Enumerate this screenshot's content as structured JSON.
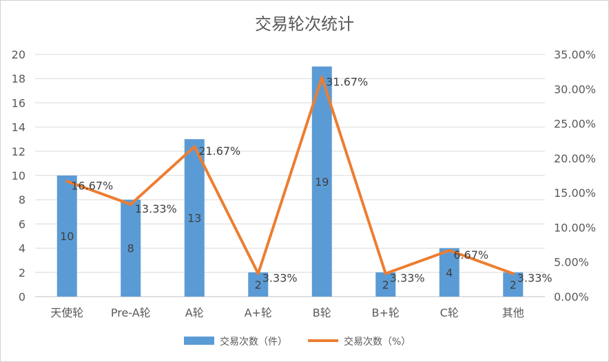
{
  "chart_data": {
    "type": "bar",
    "title": "交易轮次统计",
    "categories": [
      "天使轮",
      "Pre-A轮",
      "A轮",
      "A+轮",
      "B轮",
      "B+轮",
      "C轮",
      "其他"
    ],
    "series": [
      {
        "name": "交易次数（件）",
        "type": "bar",
        "axis": "left",
        "values": [
          10,
          8,
          13,
          2,
          19,
          2,
          4,
          2
        ],
        "labels": [
          "10",
          "8",
          "13",
          "2",
          "19",
          "2",
          "4",
          "2"
        ],
        "color": "#5b9bd5"
      },
      {
        "name": "交易次数（%）",
        "type": "line",
        "axis": "right",
        "values": [
          16.67,
          13.33,
          21.67,
          3.33,
          31.67,
          3.33,
          6.67,
          3.33
        ],
        "labels": [
          "16.67%",
          "13.33%",
          "21.67%",
          "3.33%",
          "31.67%",
          "3.33%",
          "6.67%",
          "3.33%"
        ],
        "color": "#ed7d31"
      }
    ],
    "y_left": {
      "min": 0,
      "max": 20,
      "step": 2,
      "ticks": [
        "0",
        "2",
        "4",
        "6",
        "8",
        "10",
        "12",
        "14",
        "16",
        "18",
        "20"
      ]
    },
    "y_right": {
      "min": 0,
      "max": 35,
      "step": 5,
      "ticks": [
        "0.00%",
        "5.00%",
        "10.00%",
        "15.00%",
        "20.00%",
        "25.00%",
        "30.00%",
        "35.00%"
      ]
    },
    "grid": true,
    "legend_position": "bottom"
  }
}
